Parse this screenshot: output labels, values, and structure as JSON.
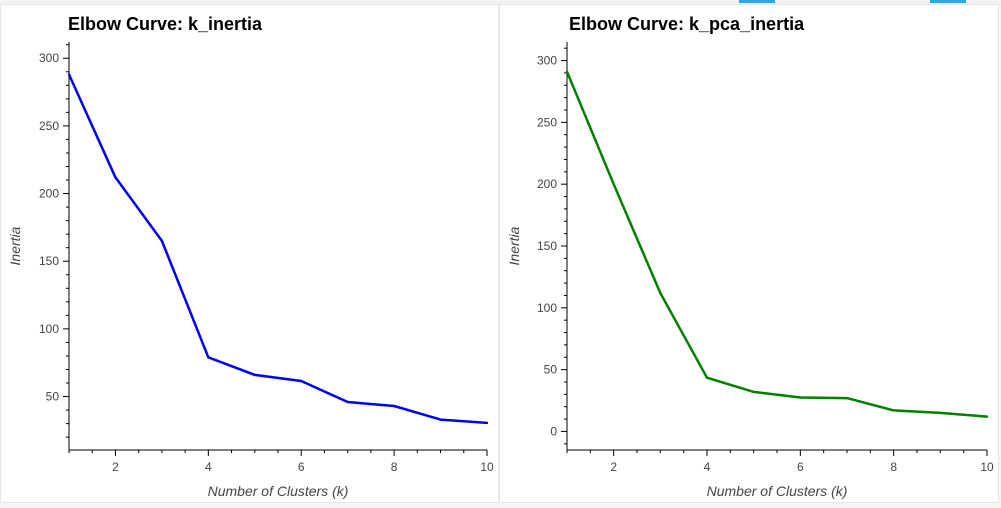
{
  "toolbar": {
    "accent_color": "#26aae1",
    "accent_icons": [
      "toolbar-tool-active-icon",
      "toolbar-tool-active-icon"
    ]
  },
  "chart_data": [
    {
      "type": "line",
      "title": "Elbow Curve: k_inertia",
      "xlabel": "Number of Clusters (k)",
      "ylabel": "Inertia",
      "x": [
        1,
        2,
        3,
        4,
        5,
        6,
        7,
        8,
        9,
        10
      ],
      "series": [
        {
          "values": [
            288,
            212,
            165,
            79,
            66,
            61.5,
            46,
            43,
            33,
            30.5
          ],
          "color": "#0000ee"
        }
      ],
      "xlim": [
        1,
        10
      ],
      "ylim": [
        10.5,
        312
      ],
      "xticks": [
        2,
        4,
        6,
        8,
        10
      ],
      "yticks": [
        50,
        100,
        150,
        200,
        250,
        300
      ],
      "grid": false
    },
    {
      "type": "line",
      "title": "Elbow Curve: k_pca_inertia",
      "xlabel": "Number of Clusters (k)",
      "ylabel": "Inertia",
      "x": [
        1,
        2,
        3,
        4,
        5,
        6,
        7,
        8,
        9,
        10
      ],
      "series": [
        {
          "values": [
            291,
            200,
            112,
            43.5,
            32,
            27.5,
            27,
            17,
            15,
            12
          ],
          "color": "#008000"
        }
      ],
      "xlim": [
        1,
        10
      ],
      "ylim": [
        -15,
        315
      ],
      "xticks": [
        2,
        4,
        6,
        8,
        10
      ],
      "yticks": [
        0,
        50,
        100,
        150,
        200,
        250,
        300
      ],
      "grid": false
    }
  ]
}
